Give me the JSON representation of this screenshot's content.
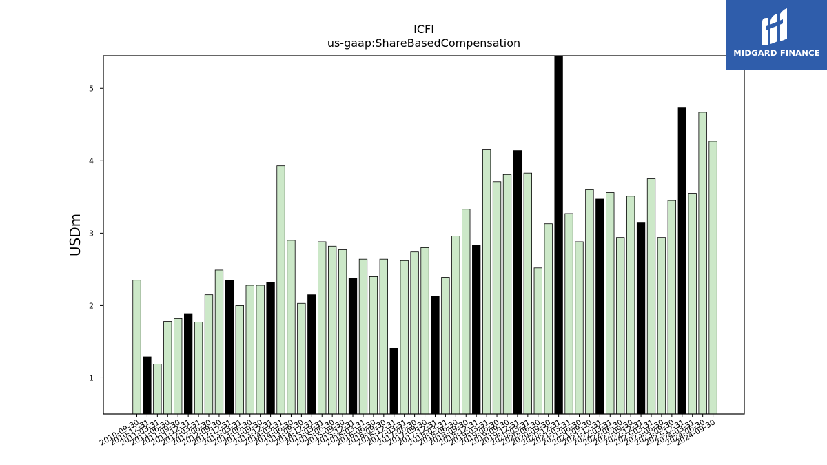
{
  "brand": {
    "name": "MIDGARD FINANCE",
    "color": "#2f5dab"
  },
  "colors": {
    "normal_bar": "#cce8c8",
    "highlight_bar": "#000000",
    "edge": "#000000"
  },
  "chart_data": {
    "type": "bar",
    "title": "ICFI",
    "subtitle": "us-gaap:ShareBasedCompensation",
    "xlabel": "",
    "ylabel": "USDm",
    "ylim": [
      0.5,
      5.45
    ],
    "yticks": [
      1,
      2,
      3,
      4,
      5
    ],
    "grid": false,
    "legend": "none",
    "categories": [
      "2010-09-30",
      "2010-12-31",
      "2011-03-31",
      "2011-06-30",
      "2011-09-30",
      "2011-12-31",
      "2012-03-31",
      "2012-06-30",
      "2012-09-30",
      "2012-12-31",
      "2013-03-31",
      "2013-06-30",
      "2013-09-30",
      "2013-12-31",
      "2014-03-31",
      "2014-06-30",
      "2014-09-30",
      "2014-12-31",
      "2015-03-31",
      "2015-06-30",
      "2015-09-30",
      "2015-12-31",
      "2016-03-31",
      "2016-06-30",
      "2016-09-30",
      "2016-12-31",
      "2017-03-31",
      "2017-06-30",
      "2017-09-30",
      "2017-12-31",
      "2018-03-31",
      "2018-06-30",
      "2018-09-30",
      "2018-12-31",
      "2019-03-31",
      "2019-06-30",
      "2019-09-30",
      "2019-12-31",
      "2020-03-31",
      "2020-06-30",
      "2020-09-30",
      "2020-12-31",
      "2021-03-31",
      "2021-06-30",
      "2021-09-30",
      "2021-12-31",
      "2022-03-31",
      "2022-06-30",
      "2022-09-30",
      "2022-12-31",
      "2023-03-31",
      "2023-06-30",
      "2023-09-30",
      "2023-12-31",
      "2024-03-31",
      "2024-06-30",
      "2024-09-30"
    ],
    "values": [
      2.35,
      1.29,
      1.19,
      1.78,
      1.82,
      1.88,
      1.77,
      2.15,
      2.49,
      2.35,
      2.0,
      2.28,
      2.28,
      2.32,
      3.93,
      2.9,
      2.03,
      2.15,
      2.88,
      2.82,
      2.77,
      2.38,
      2.64,
      2.4,
      2.64,
      1.41,
      2.62,
      2.74,
      2.8,
      2.13,
      2.39,
      2.96,
      3.33,
      2.83,
      4.15,
      3.71,
      3.81,
      4.14,
      3.83,
      2.52,
      3.13,
      5.45,
      3.27,
      2.88,
      3.6,
      3.47,
      3.56,
      2.94,
      3.51,
      3.15,
      3.75,
      2.94,
      3.45,
      4.73,
      3.55,
      4.67,
      4.27
    ],
    "highlighted": [
      1,
      5,
      9,
      13,
      17,
      21,
      25,
      29,
      33,
      37,
      41,
      45,
      49,
      53
    ]
  }
}
